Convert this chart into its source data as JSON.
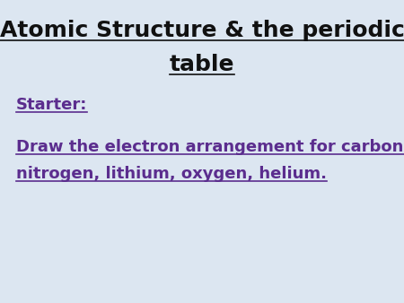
{
  "background_color": "#dce6f1",
  "title_line1": "Atomic Structure & the periodic",
  "title_line2": "table",
  "title_color": "#111111",
  "title_fontsize": 18,
  "starter_text": "Starter:",
  "starter_color": "#5b2d8e",
  "starter_fontsize": 13,
  "body_line1": "Draw the electron arrangement for carbon,",
  "body_line2": "nitrogen, lithium, oxygen, helium.",
  "body_color": "#5b2d8e",
  "body_fontsize": 13,
  "fig_width": 4.5,
  "fig_height": 3.38,
  "dpi": 100
}
